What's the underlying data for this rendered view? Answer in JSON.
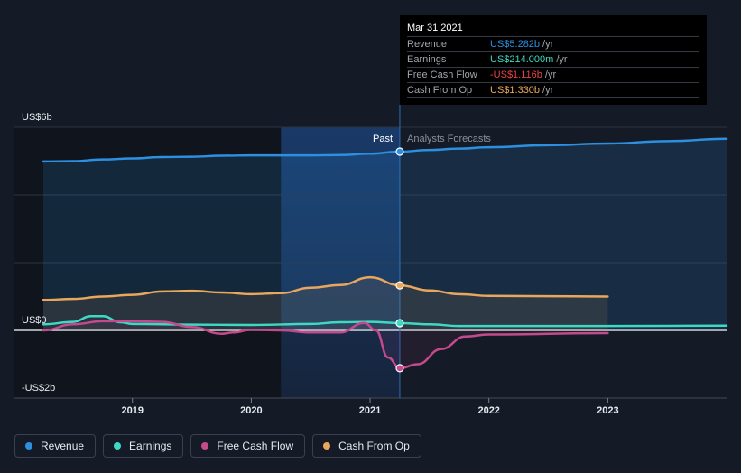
{
  "chart_data": {
    "type": "line",
    "y_axis": {
      "top_label": "US$6b",
      "zero_label": "US$0",
      "bottom_label": "-US$2b",
      "ylim": [
        -2,
        6
      ]
    },
    "x_ticks": [
      {
        "label": "2019",
        "x": 2019.0
      },
      {
        "label": "2020",
        "x": 2020.0
      },
      {
        "label": "2021",
        "x": 2021.0
      },
      {
        "label": "2022",
        "x": 2022.0
      },
      {
        "label": "2023",
        "x": 2023.0
      }
    ],
    "xlim": [
      2018.25,
      2024.0
    ],
    "past_divider": 2021.25,
    "past_label": "Past",
    "forecast_label": "Analysts Forecasts",
    "series": [
      {
        "name": "Revenue",
        "key": "revenue",
        "color": "#2d8fe0",
        "area": true,
        "points": [
          [
            2018.25,
            4.99
          ],
          [
            2018.5,
            5.0
          ],
          [
            2018.75,
            5.05
          ],
          [
            2019.0,
            5.08
          ],
          [
            2019.25,
            5.12
          ],
          [
            2019.5,
            5.13
          ],
          [
            2019.75,
            5.16
          ],
          [
            2020.0,
            5.17
          ],
          [
            2020.25,
            5.17
          ],
          [
            2020.5,
            5.17
          ],
          [
            2020.75,
            5.18
          ],
          [
            2021.0,
            5.22
          ],
          [
            2021.25,
            5.28
          ],
          [
            2021.5,
            5.33
          ],
          [
            2021.75,
            5.37
          ],
          [
            2022.0,
            5.41
          ],
          [
            2022.5,
            5.47
          ],
          [
            2023.0,
            5.52
          ],
          [
            2023.5,
            5.59
          ],
          [
            2024.0,
            5.66
          ]
        ]
      },
      {
        "name": "Earnings",
        "key": "earnings",
        "color": "#3fd9c3",
        "area": false,
        "points": [
          [
            2018.25,
            0.18
          ],
          [
            2018.5,
            0.25
          ],
          [
            2018.65,
            0.42
          ],
          [
            2018.75,
            0.42
          ],
          [
            2018.9,
            0.24
          ],
          [
            2019.0,
            0.19
          ],
          [
            2019.5,
            0.17
          ],
          [
            2020.0,
            0.16
          ],
          [
            2020.5,
            0.19
          ],
          [
            2020.75,
            0.24
          ],
          [
            2021.0,
            0.25
          ],
          [
            2021.25,
            0.214
          ],
          [
            2021.5,
            0.18
          ],
          [
            2021.75,
            0.13
          ],
          [
            2022.0,
            0.13
          ],
          [
            2023.0,
            0.13
          ],
          [
            2024.0,
            0.14
          ]
        ]
      },
      {
        "name": "Free Cash Flow",
        "key": "fcf",
        "color": "#c44a8e",
        "area": false,
        "points": [
          [
            2018.25,
            0.0
          ],
          [
            2018.5,
            0.18
          ],
          [
            2018.75,
            0.27
          ],
          [
            2019.0,
            0.27
          ],
          [
            2019.25,
            0.25
          ],
          [
            2019.5,
            0.1
          ],
          [
            2019.75,
            -0.1
          ],
          [
            2019.85,
            -0.06
          ],
          [
            2020.0,
            0.02
          ],
          [
            2020.25,
            0.0
          ],
          [
            2020.5,
            -0.06
          ],
          [
            2020.75,
            -0.06
          ],
          [
            2020.95,
            0.22
          ],
          [
            2021.05,
            0.0
          ],
          [
            2021.15,
            -0.8
          ],
          [
            2021.25,
            -1.116
          ],
          [
            2021.4,
            -1.0
          ],
          [
            2021.6,
            -0.55
          ],
          [
            2021.8,
            -0.18
          ],
          [
            2022.0,
            -0.12
          ],
          [
            2023.0,
            -0.08
          ]
        ]
      },
      {
        "name": "Cash From Op",
        "key": "cfo",
        "color": "#e8a75c",
        "area": true,
        "points": [
          [
            2018.25,
            0.9
          ],
          [
            2018.5,
            0.93
          ],
          [
            2018.75,
            1.0
          ],
          [
            2019.0,
            1.05
          ],
          [
            2019.25,
            1.15
          ],
          [
            2019.5,
            1.17
          ],
          [
            2019.75,
            1.12
          ],
          [
            2020.0,
            1.07
          ],
          [
            2020.25,
            1.1
          ],
          [
            2020.5,
            1.26
          ],
          [
            2020.75,
            1.34
          ],
          [
            2021.0,
            1.57
          ],
          [
            2021.25,
            1.33
          ],
          [
            2021.5,
            1.18
          ],
          [
            2021.75,
            1.07
          ],
          [
            2022.0,
            1.02
          ],
          [
            2023.0,
            1.0
          ]
        ]
      }
    ]
  },
  "tooltip": {
    "date": "Mar 31 2021",
    "rows": [
      {
        "label": "Revenue",
        "value": "US$5.282b",
        "unit": "/yr",
        "color": "#2d8fe0"
      },
      {
        "label": "Earnings",
        "value": "US$214.000m",
        "unit": "/yr",
        "color": "#3fd9c3"
      },
      {
        "label": "Free Cash Flow",
        "value": "-US$1.116b",
        "unit": "/yr",
        "color": "#e8434a"
      },
      {
        "label": "Cash From Op",
        "value": "US$1.330b",
        "unit": "/yr",
        "color": "#e8a75c"
      }
    ]
  },
  "legend": [
    {
      "label": "Revenue",
      "color": "#2d8fe0"
    },
    {
      "label": "Earnings",
      "color": "#3fd9c3"
    },
    {
      "label": "Free Cash Flow",
      "color": "#c44a8e"
    },
    {
      "label": "Cash From Op",
      "color": "#e8a75c"
    }
  ]
}
